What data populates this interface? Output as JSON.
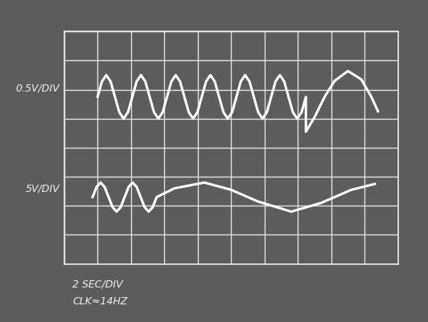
{
  "chart_data": {
    "type": "line",
    "xlim": [
      0,
      10
    ],
    "ylim": [
      -4,
      4
    ],
    "xticks": [
      0,
      1,
      2,
      3,
      4,
      5,
      6,
      7,
      8,
      9,
      10
    ],
    "yticks": [
      -4,
      -3,
      -2,
      -1,
      0,
      1,
      2,
      3,
      4
    ],
    "grid": true,
    "tick_labels": false,
    "annotations": [
      "0.5V/DIV",
      "5V/DIV",
      "2 SEC/DIV",
      "CLK≈14HZ"
    ],
    "series": [
      {
        "color": "#ffffff",
        "x": [
          1.0,
          1.13,
          1.26,
          1.39,
          1.52,
          1.65,
          1.78,
          1.91,
          2.04,
          2.17,
          2.3,
          2.43,
          2.56,
          2.69,
          2.82,
          2.95,
          3.08,
          3.21,
          3.34,
          3.47,
          3.6,
          3.73,
          3.86,
          3.99,
          4.12,
          4.25,
          4.38,
          4.51,
          4.64,
          4.77,
          4.9,
          5.03,
          5.16,
          5.29,
          5.42,
          5.55,
          5.68,
          5.81,
          5.94,
          6.07,
          6.2,
          6.33,
          6.46,
          6.59,
          6.72,
          6.85,
          6.98,
          7.11,
          7.24,
          7.24,
          7.5,
          7.8,
          8.1,
          8.5,
          8.9,
          9.2,
          9.4
        ],
        "values": [
          1.75,
          2.28,
          2.5,
          2.28,
          1.75,
          1.22,
          1.0,
          1.22,
          1.75,
          2.28,
          2.5,
          2.28,
          1.75,
          1.22,
          1.0,
          1.22,
          1.75,
          2.28,
          2.5,
          2.28,
          1.75,
          1.22,
          1.0,
          1.22,
          1.75,
          2.28,
          2.5,
          2.28,
          1.75,
          1.22,
          1.0,
          1.22,
          1.75,
          2.28,
          2.5,
          2.28,
          1.75,
          1.22,
          1.0,
          1.22,
          1.75,
          2.28,
          2.5,
          2.28,
          1.75,
          1.22,
          1.0,
          1.22,
          1.75,
          0.55,
          1.05,
          1.75,
          2.3,
          2.64,
          2.35,
          1.75,
          1.25
        ]
      },
      {
        "color": "#ffffff",
        "x": [
          0.85,
          0.97,
          1.09,
          1.21,
          1.33,
          1.45,
          1.57,
          1.69,
          1.81,
          1.93,
          2.05,
          2.17,
          2.29,
          2.41,
          2.53,
          2.65,
          2.77,
          3.3,
          4.2,
          5.0,
          5.8,
          6.8,
          7.7,
          8.6,
          9.3
        ],
        "values": [
          -1.7,
          -1.35,
          -1.2,
          -1.35,
          -1.7,
          -2.05,
          -2.2,
          -2.05,
          -1.7,
          -1.35,
          -1.2,
          -1.35,
          -1.7,
          -2.05,
          -2.2,
          -2.05,
          -1.7,
          -1.4,
          -1.2,
          -1.45,
          -1.85,
          -2.2,
          -1.9,
          -1.45,
          -1.25
        ]
      }
    ]
  }
}
